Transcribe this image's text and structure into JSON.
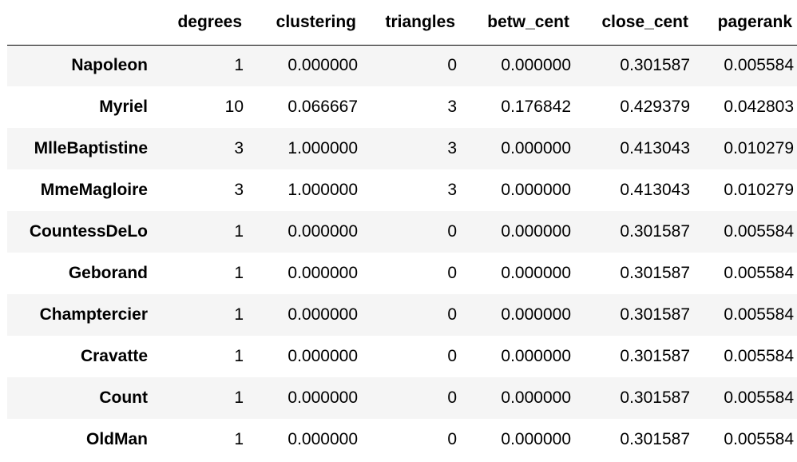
{
  "table": {
    "index_header": "",
    "columns": [
      "degrees",
      "clustering",
      "triangles",
      "betw_cent",
      "close_cent",
      "pagerank"
    ],
    "rows": [
      {
        "index": "Napoleon",
        "values": [
          "1",
          "0.000000",
          "0",
          "0.000000",
          "0.301587",
          "0.005584"
        ]
      },
      {
        "index": "Myriel",
        "values": [
          "10",
          "0.066667",
          "3",
          "0.176842",
          "0.429379",
          "0.042803"
        ]
      },
      {
        "index": "MlleBaptistine",
        "values": [
          "3",
          "1.000000",
          "3",
          "0.000000",
          "0.413043",
          "0.010279"
        ]
      },
      {
        "index": "MmeMagloire",
        "values": [
          "3",
          "1.000000",
          "3",
          "0.000000",
          "0.413043",
          "0.010279"
        ]
      },
      {
        "index": "CountessDeLo",
        "values": [
          "1",
          "0.000000",
          "0",
          "0.000000",
          "0.301587",
          "0.005584"
        ]
      },
      {
        "index": "Geborand",
        "values": [
          "1",
          "0.000000",
          "0",
          "0.000000",
          "0.301587",
          "0.005584"
        ]
      },
      {
        "index": "Champtercier",
        "values": [
          "1",
          "0.000000",
          "0",
          "0.000000",
          "0.301587",
          "0.005584"
        ]
      },
      {
        "index": "Cravatte",
        "values": [
          "1",
          "0.000000",
          "0",
          "0.000000",
          "0.301587",
          "0.005584"
        ]
      },
      {
        "index": "Count",
        "values": [
          "1",
          "0.000000",
          "0",
          "0.000000",
          "0.301587",
          "0.005584"
        ]
      },
      {
        "index": "OldMan",
        "values": [
          "1",
          "0.000000",
          "0",
          "0.000000",
          "0.301587",
          "0.005584"
        ]
      }
    ]
  },
  "colors": {
    "stripe": "#f5f5f5",
    "background": "#ffffff",
    "text": "#000000",
    "header_rule": "#000000"
  }
}
